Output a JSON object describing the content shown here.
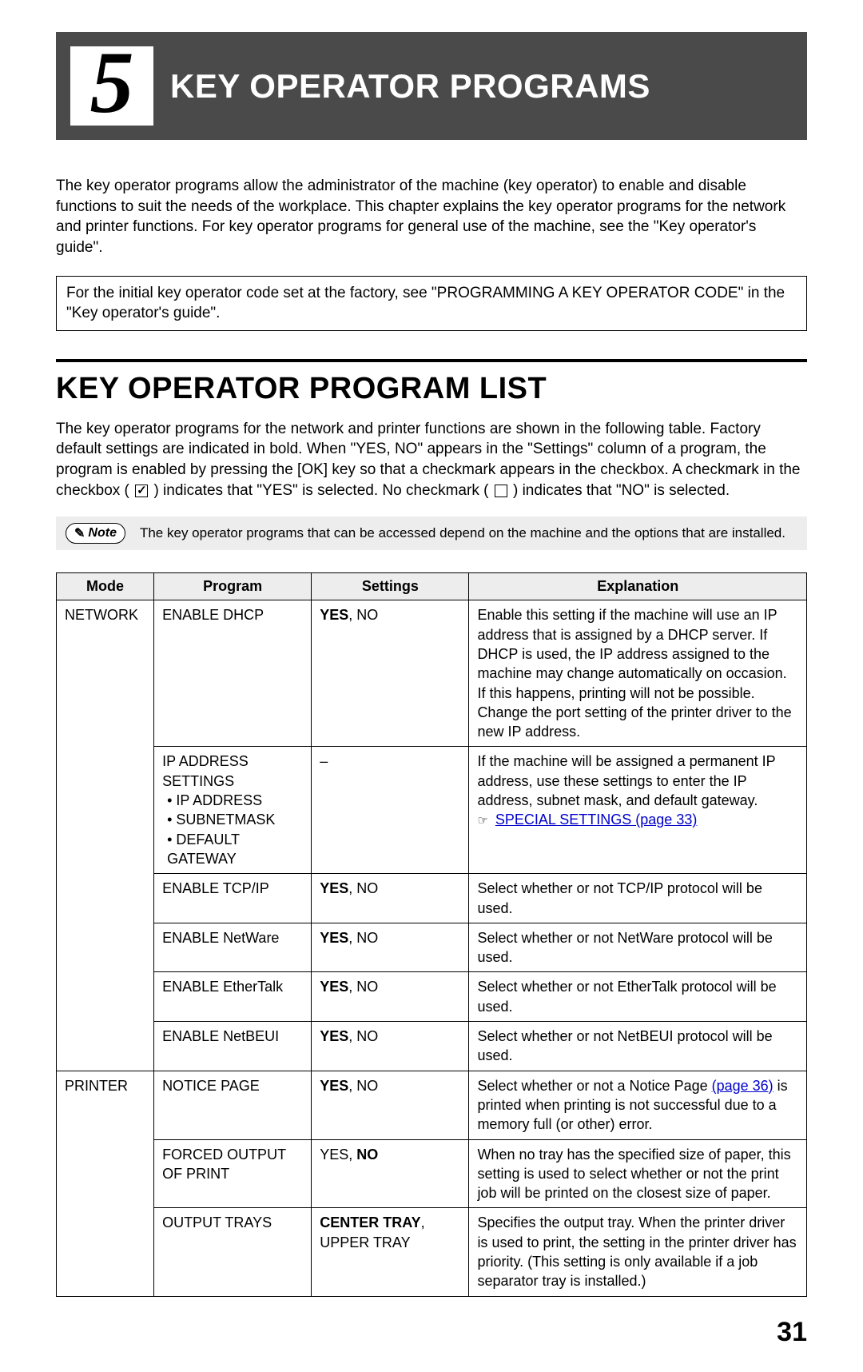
{
  "chapter": {
    "number": "5",
    "title": "KEY OPERATOR PROGRAMS"
  },
  "intro": "The key operator programs allow the administrator of the machine (key operator) to enable and disable functions to suit the needs of the workplace. This chapter explains the key operator programs for the network and printer functions. For key operator programs for general use of the machine, see the \"Key operator's guide\".",
  "infoBox": "For the initial key operator code set at the factory, see \"PROGRAMMING A KEY OPERATOR CODE\" in the \"Key operator's guide\".",
  "section": {
    "title": "KEY OPERATOR PROGRAM LIST",
    "para_part1": "The key operator programs for the network and printer functions are shown in the following table. Factory default settings are indicated in bold. When \"YES, NO\" appears in the \"Settings\" column of a program, the program is enabled by pressing the [OK] key so that a checkmark appears in the checkbox. A checkmark in the checkbox (",
    "para_part2": ") indicates that \"YES\" is selected. No checkmark (",
    "para_part3": ") indicates that \"NO\" is selected."
  },
  "note": {
    "label": "Note",
    "text": "The key operator programs that can be accessed depend on the machine and the options that are installed."
  },
  "table": {
    "headers": {
      "mode": "Mode",
      "program": "Program",
      "settings": "Settings",
      "explanation": "Explanation"
    },
    "modes": {
      "network": "NETWORK",
      "printer": "PRINTER"
    },
    "rows": {
      "r1": {
        "program": "ENABLE DHCP",
        "settings_bold": "YES",
        "settings_rest": ", NO",
        "explanation": "Enable this setting if the machine will use an IP address that is assigned by a DHCP server. If DHCP is used, the IP address assigned to the machine may change automatically on occasion. If this happens, printing will not be possible. Change the port setting of the printer driver to the new IP address."
      },
      "r2": {
        "program": "IP ADDRESS SETTINGS",
        "sub1": "IP ADDRESS",
        "sub2": "SUBNETMASK",
        "sub3": "DEFAULT GATEWAY",
        "settings": "–",
        "explanation": "If the machine will be assigned a permanent IP address, use these settings to enter the IP address, subnet mask, and default gateway.",
        "link": "SPECIAL SETTINGS (page 33)"
      },
      "r3": {
        "program": "ENABLE TCP/IP",
        "settings_bold": "YES",
        "settings_rest": ", NO",
        "explanation": "Select whether or not TCP/IP protocol will be used."
      },
      "r4": {
        "program": "ENABLE NetWare",
        "settings_bold": "YES",
        "settings_rest": ", NO",
        "explanation": "Select whether or not NetWare protocol will be used."
      },
      "r5": {
        "program": "ENABLE EtherTalk",
        "settings_bold": "YES",
        "settings_rest": ", NO",
        "explanation": "Select whether or not EtherTalk protocol will be used."
      },
      "r6": {
        "program": "ENABLE NetBEUI",
        "settings_bold": "YES",
        "settings_rest": ", NO",
        "explanation": "Select whether or not NetBEUI protocol will be used."
      },
      "r7": {
        "program": "NOTICE PAGE",
        "settings_bold": "YES",
        "settings_rest": ", NO",
        "explanation_pre": "Select whether or not a Notice Page ",
        "link": "(page 36)",
        "explanation_post": " is printed when printing is not successful due to a memory full (or other) error."
      },
      "r8": {
        "program": "FORCED OUTPUT OF PRINT",
        "settings_pre": "YES, ",
        "settings_bold": "NO",
        "explanation": "When no tray has the specified size of paper, this setting is used to select whether or not the print job will be printed on the closest size of paper."
      },
      "r9": {
        "program": "OUTPUT TRAYS",
        "settings_bold": "CENTER TRAY",
        "settings_rest": ", UPPER TRAY",
        "explanation": "Specifies the output tray. When the printer driver is used to print, the setting in the printer driver has priority. (This setting is only available if a job separator tray is installed.)"
      }
    }
  },
  "pageNumber": "31"
}
